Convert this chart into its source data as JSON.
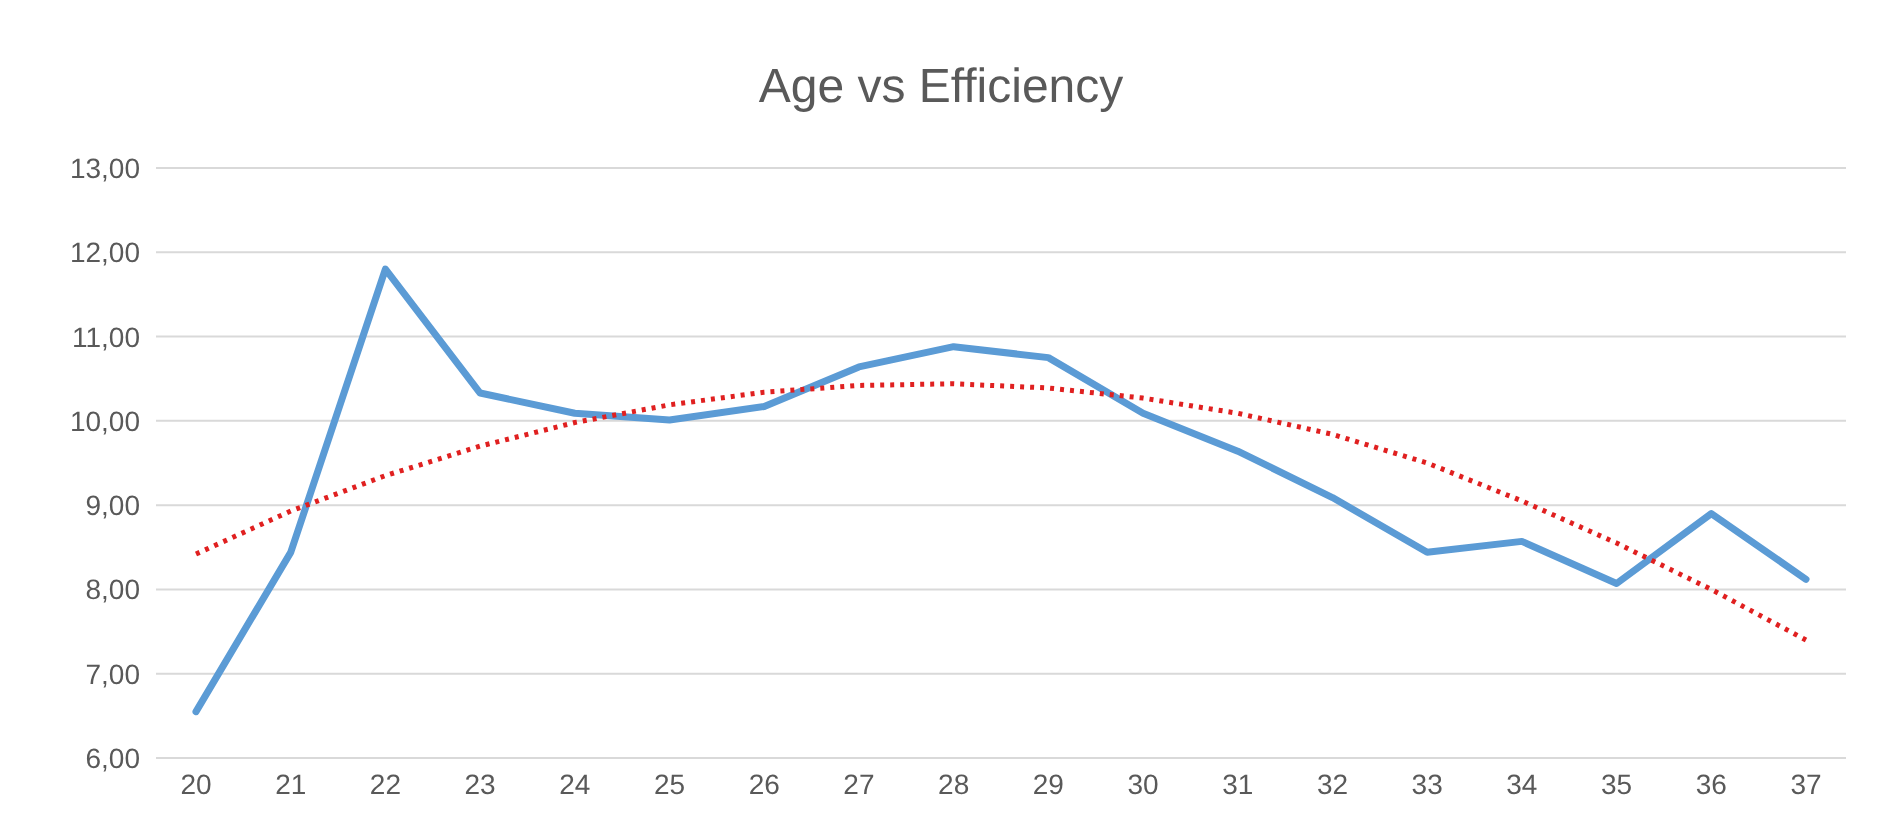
{
  "chart_data": {
    "type": "line",
    "title": "Age vs Efficiency",
    "categories": [
      "20",
      "21",
      "22",
      "23",
      "24",
      "25",
      "26",
      "27",
      "28",
      "29",
      "30",
      "31",
      "32",
      "33",
      "34",
      "35",
      "36",
      "37"
    ],
    "series": [
      {
        "color": "#5b9bd5",
        "values": [
          6.55,
          8.44,
          11.8,
          10.33,
          10.09,
          10.01,
          10.17,
          10.64,
          10.88,
          10.75,
          10.09,
          9.64,
          9.09,
          8.44,
          8.57,
          8.07,
          8.9,
          8.12
        ],
        "line_style": "solid"
      },
      {
        "color": "#e02020",
        "values": [
          8.42,
          8.93,
          9.35,
          9.7,
          9.98,
          10.19,
          10.34,
          10.42,
          10.44,
          10.39,
          10.27,
          10.09,
          9.84,
          9.5,
          9.05,
          8.55,
          8.0,
          7.4
        ],
        "line_style": "dotted"
      }
    ],
    "ylim": [
      6,
      13
    ],
    "yticks": [
      {
        "value": 6,
        "label": "6,00"
      },
      {
        "value": 7,
        "label": "7,00"
      },
      {
        "value": 8,
        "label": "8,00"
      },
      {
        "value": 9,
        "label": "9,00"
      },
      {
        "value": 10,
        "label": "10,00"
      },
      {
        "value": 11,
        "label": "11,00"
      },
      {
        "value": 12,
        "label": "12,00"
      },
      {
        "value": 13,
        "label": "13,00"
      }
    ],
    "grid": "y",
    "marker": "none",
    "legend": false
  }
}
